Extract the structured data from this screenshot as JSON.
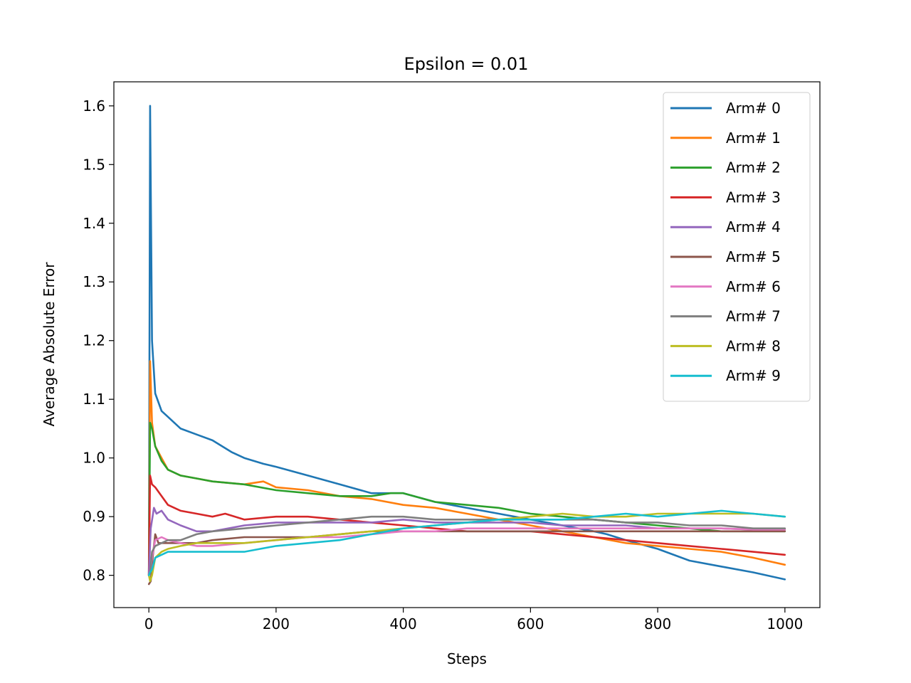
{
  "chart_data": {
    "type": "line",
    "title": "Epsilon = 0.01",
    "xlabel": "Steps",
    "ylabel": "Average Absolute Error",
    "xlim": [
      -55,
      1055
    ],
    "ylim": [
      0.745,
      1.641
    ],
    "xticks": [
      0,
      200,
      400,
      600,
      800,
      1000
    ],
    "xtick_labels": [
      "0",
      "200",
      "400",
      "600",
      "800",
      "1000"
    ],
    "yticks": [
      0.8,
      0.9,
      1.0,
      1.1,
      1.2,
      1.3,
      1.4,
      1.5,
      1.6
    ],
    "ytick_labels": [
      "0.8",
      "0.9",
      "1.0",
      "1.1",
      "1.2",
      "1.3",
      "1.4",
      "1.5",
      "1.6"
    ],
    "grid": false,
    "legend_position": "top-right",
    "series": [
      {
        "name": "Arm# 0",
        "color": "#1f77b4",
        "x": [
          0,
          2,
          5,
          10,
          20,
          30,
          50,
          75,
          100,
          130,
          150,
          180,
          200,
          250,
          300,
          350,
          400,
          450,
          500,
          550,
          600,
          650,
          700,
          720,
          750,
          800,
          850,
          900,
          950,
          1000
        ],
        "y": [
          0.8,
          1.6,
          1.2,
          1.11,
          1.08,
          1.07,
          1.05,
          1.04,
          1.03,
          1.01,
          1.0,
          0.99,
          0.985,
          0.97,
          0.955,
          0.94,
          0.94,
          0.925,
          0.915,
          0.905,
          0.895,
          0.885,
          0.875,
          0.87,
          0.86,
          0.845,
          0.825,
          0.815,
          0.805,
          0.793
        ]
      },
      {
        "name": "Arm# 1",
        "color": "#ff7f0e",
        "x": [
          0,
          2,
          5,
          10,
          20,
          30,
          50,
          75,
          100,
          150,
          180,
          200,
          250,
          300,
          350,
          400,
          450,
          500,
          550,
          600,
          650,
          700,
          750,
          800,
          850,
          900,
          950,
          1000
        ],
        "y": [
          0.8,
          1.165,
          1.06,
          1.02,
          1.0,
          0.98,
          0.97,
          0.965,
          0.96,
          0.955,
          0.96,
          0.95,
          0.945,
          0.935,
          0.93,
          0.92,
          0.915,
          0.905,
          0.895,
          0.885,
          0.875,
          0.865,
          0.855,
          0.85,
          0.845,
          0.84,
          0.83,
          0.818
        ]
      },
      {
        "name": "Arm# 2",
        "color": "#2ca02c",
        "x": [
          0,
          2,
          5,
          10,
          20,
          30,
          50,
          75,
          100,
          150,
          200,
          250,
          300,
          350,
          380,
          400,
          450,
          500,
          550,
          600,
          650,
          700,
          750,
          800,
          850,
          900,
          950,
          1000
        ],
        "y": [
          0.8,
          1.06,
          1.05,
          1.02,
          0.995,
          0.98,
          0.97,
          0.965,
          0.96,
          0.955,
          0.945,
          0.94,
          0.935,
          0.935,
          0.94,
          0.94,
          0.925,
          0.92,
          0.915,
          0.905,
          0.9,
          0.895,
          0.89,
          0.885,
          0.88,
          0.875,
          0.875,
          0.875
        ]
      },
      {
        "name": "Arm# 3",
        "color": "#d62728",
        "x": [
          0,
          2,
          5,
          10,
          20,
          30,
          50,
          75,
          100,
          120,
          150,
          200,
          250,
          300,
          350,
          400,
          450,
          500,
          550,
          600,
          650,
          700,
          750,
          800,
          850,
          900,
          950,
          1000
        ],
        "y": [
          0.8,
          0.97,
          0.955,
          0.95,
          0.935,
          0.92,
          0.91,
          0.905,
          0.9,
          0.905,
          0.895,
          0.9,
          0.9,
          0.895,
          0.89,
          0.885,
          0.88,
          0.875,
          0.875,
          0.875,
          0.87,
          0.865,
          0.86,
          0.855,
          0.85,
          0.845,
          0.84,
          0.835
        ]
      },
      {
        "name": "Arm# 4",
        "color": "#9467bd",
        "x": [
          0,
          3,
          8,
          12,
          20,
          30,
          50,
          75,
          100,
          150,
          200,
          250,
          300,
          350,
          400,
          450,
          500,
          550,
          600,
          650,
          700,
          750,
          800,
          850,
          900,
          950,
          1000
        ],
        "y": [
          0.8,
          0.88,
          0.915,
          0.905,
          0.91,
          0.895,
          0.885,
          0.875,
          0.875,
          0.885,
          0.89,
          0.89,
          0.89,
          0.89,
          0.895,
          0.89,
          0.89,
          0.89,
          0.89,
          0.885,
          0.885,
          0.885,
          0.88,
          0.88,
          0.88,
          0.878,
          0.878
        ]
      },
      {
        "name": "Arm# 5",
        "color": "#8c564b",
        "x": [
          0,
          3,
          6,
          10,
          15,
          20,
          30,
          50,
          75,
          100,
          150,
          200,
          250,
          300,
          350,
          400,
          450,
          500,
          550,
          600,
          650,
          700,
          750,
          800,
          850,
          900,
          950,
          1000
        ],
        "y": [
          0.785,
          0.79,
          0.83,
          0.87,
          0.855,
          0.855,
          0.855,
          0.855,
          0.855,
          0.86,
          0.865,
          0.865,
          0.865,
          0.87,
          0.875,
          0.875,
          0.875,
          0.875,
          0.875,
          0.875,
          0.875,
          0.875,
          0.875,
          0.875,
          0.875,
          0.875,
          0.875,
          0.875
        ]
      },
      {
        "name": "Arm# 6",
        "color": "#e377c2",
        "x": [
          0,
          2,
          5,
          10,
          20,
          30,
          50,
          75,
          100,
          150,
          200,
          250,
          300,
          350,
          400,
          450,
          500,
          550,
          600,
          650,
          700,
          750,
          800,
          850,
          900,
          950,
          1000
        ],
        "y": [
          0.8,
          0.805,
          0.83,
          0.86,
          0.865,
          0.86,
          0.855,
          0.85,
          0.85,
          0.855,
          0.86,
          0.865,
          0.865,
          0.87,
          0.875,
          0.875,
          0.88,
          0.88,
          0.88,
          0.88,
          0.88,
          0.88,
          0.88,
          0.88,
          0.88,
          0.878,
          0.878
        ]
      },
      {
        "name": "Arm# 7",
        "color": "#7f7f7f",
        "x": [
          0,
          2,
          5,
          10,
          20,
          30,
          50,
          75,
          100,
          150,
          200,
          250,
          300,
          350,
          400,
          450,
          500,
          550,
          600,
          650,
          700,
          750,
          800,
          850,
          900,
          950,
          1000
        ],
        "y": [
          0.8,
          0.805,
          0.84,
          0.85,
          0.855,
          0.86,
          0.86,
          0.87,
          0.875,
          0.88,
          0.885,
          0.89,
          0.895,
          0.9,
          0.9,
          0.895,
          0.895,
          0.895,
          0.895,
          0.895,
          0.895,
          0.89,
          0.89,
          0.885,
          0.885,
          0.88,
          0.88
        ]
      },
      {
        "name": "Arm# 8",
        "color": "#bcbd22",
        "x": [
          0,
          2,
          5,
          10,
          20,
          30,
          50,
          75,
          100,
          150,
          200,
          250,
          300,
          350,
          400,
          450,
          500,
          550,
          600,
          650,
          700,
          750,
          800,
          850,
          900,
          950,
          1000
        ],
        "y": [
          0.8,
          0.79,
          0.8,
          0.83,
          0.84,
          0.845,
          0.85,
          0.855,
          0.855,
          0.855,
          0.86,
          0.865,
          0.87,
          0.875,
          0.88,
          0.885,
          0.89,
          0.895,
          0.9,
          0.905,
          0.9,
          0.9,
          0.905,
          0.905,
          0.905,
          0.905,
          0.9
        ]
      },
      {
        "name": "Arm# 9",
        "color": "#17becf",
        "x": [
          0,
          2,
          5,
          10,
          20,
          30,
          50,
          75,
          100,
          150,
          200,
          250,
          300,
          350,
          400,
          450,
          500,
          550,
          600,
          650,
          700,
          750,
          800,
          850,
          900,
          950,
          1000
        ],
        "y": [
          0.8,
          0.805,
          0.81,
          0.83,
          0.835,
          0.84,
          0.84,
          0.84,
          0.84,
          0.84,
          0.85,
          0.855,
          0.86,
          0.87,
          0.88,
          0.885,
          0.89,
          0.895,
          0.895,
          0.895,
          0.9,
          0.905,
          0.9,
          0.905,
          0.91,
          0.905,
          0.9
        ]
      }
    ]
  }
}
